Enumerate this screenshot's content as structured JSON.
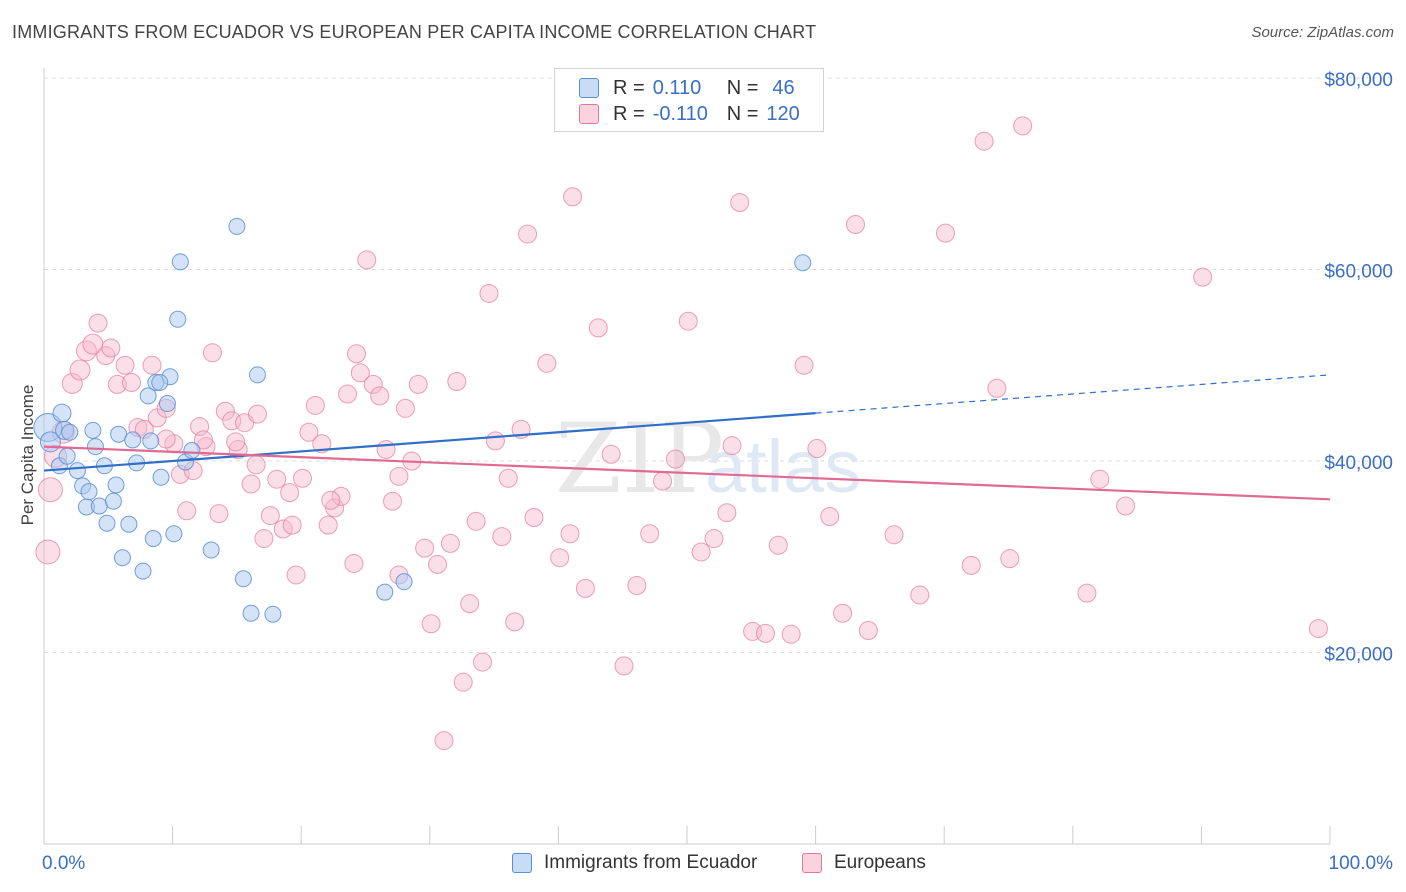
{
  "header": {
    "title": "IMMIGRANTS FROM ECUADOR VS EUROPEAN PER CAPITA INCOME CORRELATION CHART",
    "source": "Source: ZipAtlas.com"
  },
  "legend_top": {
    "rows": [
      {
        "r_label": "R =",
        "r_value": "0.110",
        "n_label": "N =",
        "n_value": "46"
      },
      {
        "r_label": "R =",
        "r_value": "-0.110",
        "n_label": "N =",
        "n_value": "120"
      }
    ]
  },
  "legend_bottom": {
    "items": [
      "Immigrants from Ecuador",
      "Europeans"
    ]
  },
  "watermark": {
    "zip": "ZIP",
    "atlas": "atlas"
  },
  "colors": {
    "blue_fill": "#a9c8ef",
    "blue_stroke": "#5b8fd4",
    "blue_line": "#2f6fca",
    "pink_fill": "#f6b8cb",
    "pink_stroke": "#e6789d",
    "pink_line": "#e06a92",
    "tick_text": "#3a6fc4",
    "grid": "#dddddd"
  },
  "chart_data": {
    "type": "scatter",
    "title": "IMMIGRANTS FROM ECUADOR VS EUROPEAN PER CAPITA INCOME CORRELATION CHART",
    "xlabel": "",
    "ylabel": "Per Capita Income",
    "xlim": [
      0,
      100
    ],
    "ylim": [
      0,
      82000
    ],
    "x_tick_labels": [
      "0.0%",
      "100.0%"
    ],
    "y_ticks": [
      20000,
      40000,
      60000,
      80000
    ],
    "y_tick_labels": [
      "$20,000",
      "$40,000",
      "$60,000",
      "$80,000"
    ],
    "grid": "horizontal dashed",
    "legend_position": "top-center",
    "series": [
      {
        "name": "Immigrants from Ecuador",
        "r": 0.11,
        "n": 46,
        "trend": {
          "x0": 0,
          "y0": 39000,
          "x1": 60,
          "y1": 45000,
          "dashed_to_x": 100,
          "dashed_to_y": 49000
        },
        "points": [
          [
            0.3,
            43500,
            14
          ],
          [
            0.5,
            42000,
            10
          ],
          [
            1.2,
            39500,
            8
          ],
          [
            1.4,
            45000,
            9
          ],
          [
            1.6,
            43200,
            9
          ],
          [
            1.8,
            40500,
            8
          ],
          [
            2.0,
            43000,
            8
          ],
          [
            2.6,
            39000,
            8
          ],
          [
            3.0,
            37400,
            8
          ],
          [
            3.3,
            35200,
            8
          ],
          [
            3.5,
            36800,
            8
          ],
          [
            3.8,
            43200,
            8
          ],
          [
            4.0,
            41500,
            8
          ],
          [
            4.3,
            35300,
            8
          ],
          [
            4.7,
            39500,
            8
          ],
          [
            4.9,
            33500,
            8
          ],
          [
            5.4,
            35800,
            8
          ],
          [
            5.6,
            37500,
            8
          ],
          [
            5.8,
            42800,
            8
          ],
          [
            6.1,
            29900,
            8
          ],
          [
            6.6,
            33400,
            8
          ],
          [
            6.9,
            42200,
            8
          ],
          [
            7.2,
            39800,
            8
          ],
          [
            7.7,
            28500,
            8
          ],
          [
            8.1,
            46800,
            8
          ],
          [
            8.3,
            42100,
            8
          ],
          [
            8.5,
            31900,
            8
          ],
          [
            8.7,
            48200,
            8
          ],
          [
            9.1,
            38300,
            8
          ],
          [
            9.6,
            46000,
            8
          ],
          [
            9.8,
            48800,
            8
          ],
          [
            10.1,
            32400,
            8
          ],
          [
            10.4,
            54800,
            8
          ],
          [
            10.6,
            60800,
            8
          ],
          [
            11.0,
            39900,
            8
          ],
          [
            11.5,
            41100,
            8
          ],
          [
            13.0,
            30700,
            8
          ],
          [
            15.0,
            64500,
            8
          ],
          [
            15.5,
            27700,
            8
          ],
          [
            16.1,
            24100,
            8
          ],
          [
            16.6,
            49000,
            8
          ],
          [
            17.8,
            24000,
            8
          ],
          [
            26.5,
            26300,
            8
          ],
          [
            28.0,
            27400,
            8
          ],
          [
            59.0,
            60700,
            8
          ],
          [
            9.0,
            48200,
            8
          ]
        ]
      },
      {
        "name": "Europeans",
        "r": -0.11,
        "n": 120,
        "trend": {
          "x0": 0,
          "y0": 41500,
          "x1": 100,
          "y1": 36000
        },
        "points": [
          [
            0.3,
            30500,
            12
          ],
          [
            0.5,
            37000,
            12
          ],
          [
            0.9,
            40500,
            11
          ],
          [
            1.5,
            43000,
            11
          ],
          [
            2.2,
            48100,
            10
          ],
          [
            2.8,
            49500,
            10
          ],
          [
            3.3,
            51500,
            10
          ],
          [
            3.8,
            52200,
            10
          ],
          [
            4.2,
            54400,
            9
          ],
          [
            4.8,
            51000,
            9
          ],
          [
            5.2,
            51800,
            9
          ],
          [
            5.7,
            48000,
            9
          ],
          [
            6.3,
            50000,
            9
          ],
          [
            6.8,
            48200,
            9
          ],
          [
            7.3,
            43500,
            9
          ],
          [
            7.8,
            43300,
            9
          ],
          [
            8.4,
            50000,
            9
          ],
          [
            8.8,
            44500,
            9
          ],
          [
            9.5,
            45500,
            9
          ],
          [
            10.1,
            41800,
            9
          ],
          [
            10.6,
            38600,
            9
          ],
          [
            11.1,
            34800,
            9
          ],
          [
            11.6,
            39000,
            9
          ],
          [
            12.1,
            43600,
            9
          ],
          [
            12.6,
            41500,
            9
          ],
          [
            13.1,
            51300,
            9
          ],
          [
            13.6,
            34500,
            9
          ],
          [
            14.1,
            45200,
            9
          ],
          [
            14.6,
            44200,
            9
          ],
          [
            15.1,
            41200,
            9
          ],
          [
            15.6,
            44000,
            9
          ],
          [
            16.1,
            37600,
            9
          ],
          [
            16.6,
            44900,
            9
          ],
          [
            17.1,
            31900,
            9
          ],
          [
            17.6,
            34300,
            9
          ],
          [
            18.1,
            38100,
            9
          ],
          [
            18.6,
            32900,
            9
          ],
          [
            19.1,
            36700,
            9
          ],
          [
            19.6,
            28100,
            9
          ],
          [
            20.1,
            38200,
            9
          ],
          [
            20.6,
            43000,
            9
          ],
          [
            21.1,
            45800,
            9
          ],
          [
            21.6,
            41800,
            9
          ],
          [
            22.1,
            33300,
            9
          ],
          [
            22.6,
            35100,
            9
          ],
          [
            23.1,
            36300,
            9
          ],
          [
            23.6,
            47000,
            9
          ],
          [
            24.1,
            29300,
            9
          ],
          [
            24.6,
            49200,
            9
          ],
          [
            25.1,
            61000,
            9
          ],
          [
            25.6,
            48000,
            9
          ],
          [
            26.1,
            46800,
            9
          ],
          [
            26.6,
            41200,
            9
          ],
          [
            27.1,
            35800,
            9
          ],
          [
            27.6,
            28100,
            9
          ],
          [
            28.1,
            45500,
            9
          ],
          [
            28.6,
            40000,
            9
          ],
          [
            29.1,
            48000,
            9
          ],
          [
            29.6,
            30900,
            9
          ],
          [
            30.1,
            23000,
            9
          ],
          [
            30.6,
            29200,
            9
          ],
          [
            31.1,
            10800,
            9
          ],
          [
            31.6,
            31400,
            9
          ],
          [
            32.1,
            48300,
            9
          ],
          [
            32.6,
            16900,
            9
          ],
          [
            33.1,
            25100,
            9
          ],
          [
            33.6,
            33700,
            9
          ],
          [
            34.1,
            19000,
            9
          ],
          [
            34.6,
            57500,
            9
          ],
          [
            35.1,
            42100,
            9
          ],
          [
            35.6,
            32100,
            9
          ],
          [
            36.1,
            38200,
            9
          ],
          [
            36.6,
            23200,
            9
          ],
          [
            37.1,
            43300,
            9
          ],
          [
            37.6,
            63700,
            9
          ],
          [
            38.1,
            34100,
            9
          ],
          [
            39.1,
            50200,
            9
          ],
          [
            40.1,
            29900,
            9
          ],
          [
            41.1,
            67600,
            9
          ],
          [
            42.1,
            26700,
            9
          ],
          [
            43.1,
            53900,
            9
          ],
          [
            44.1,
            40700,
            9
          ],
          [
            45.1,
            18600,
            9
          ],
          [
            46.1,
            27000,
            9
          ],
          [
            47.1,
            32400,
            9
          ],
          [
            48.1,
            37900,
            9
          ],
          [
            49.1,
            40200,
            9
          ],
          [
            50.1,
            54600,
            9
          ],
          [
            51.1,
            30500,
            9
          ],
          [
            52.1,
            31900,
            9
          ],
          [
            53.1,
            34600,
            9
          ],
          [
            54.1,
            67000,
            9
          ],
          [
            55.1,
            22200,
            9
          ],
          [
            56.1,
            22000,
            9
          ],
          [
            57.1,
            31200,
            9
          ],
          [
            58.1,
            21900,
            9
          ],
          [
            59.1,
            50000,
            9
          ],
          [
            60.1,
            41300,
            9
          ],
          [
            61.1,
            34200,
            9
          ],
          [
            62.1,
            24100,
            9
          ],
          [
            63.1,
            64700,
            9
          ],
          [
            64.1,
            22300,
            9
          ],
          [
            66.1,
            32300,
            9
          ],
          [
            68.1,
            26000,
            9
          ],
          [
            70.1,
            63800,
            9
          ],
          [
            72.1,
            29100,
            9
          ],
          [
            73.1,
            73400,
            9
          ],
          [
            74.1,
            47600,
            9
          ],
          [
            75.1,
            29800,
            9
          ],
          [
            76.1,
            75000,
            9
          ],
          [
            81.1,
            26200,
            9
          ],
          [
            82.1,
            38100,
            9
          ],
          [
            84.1,
            35300,
            9
          ],
          [
            90.1,
            59200,
            9
          ],
          [
            99.1,
            22500,
            9
          ],
          [
            27.6,
            38400,
            9
          ],
          [
            40.9,
            32400,
            9
          ],
          [
            9.5,
            42300,
            9
          ],
          [
            22.3,
            35900,
            9
          ],
          [
            12.4,
            42200,
            9
          ],
          [
            14.9,
            42000,
            9
          ],
          [
            19.3,
            33300,
            9
          ],
          [
            16.5,
            39600,
            9
          ],
          [
            24.3,
            51200,
            9
          ],
          [
            53.5,
            41600,
            9
          ]
        ]
      }
    ]
  }
}
